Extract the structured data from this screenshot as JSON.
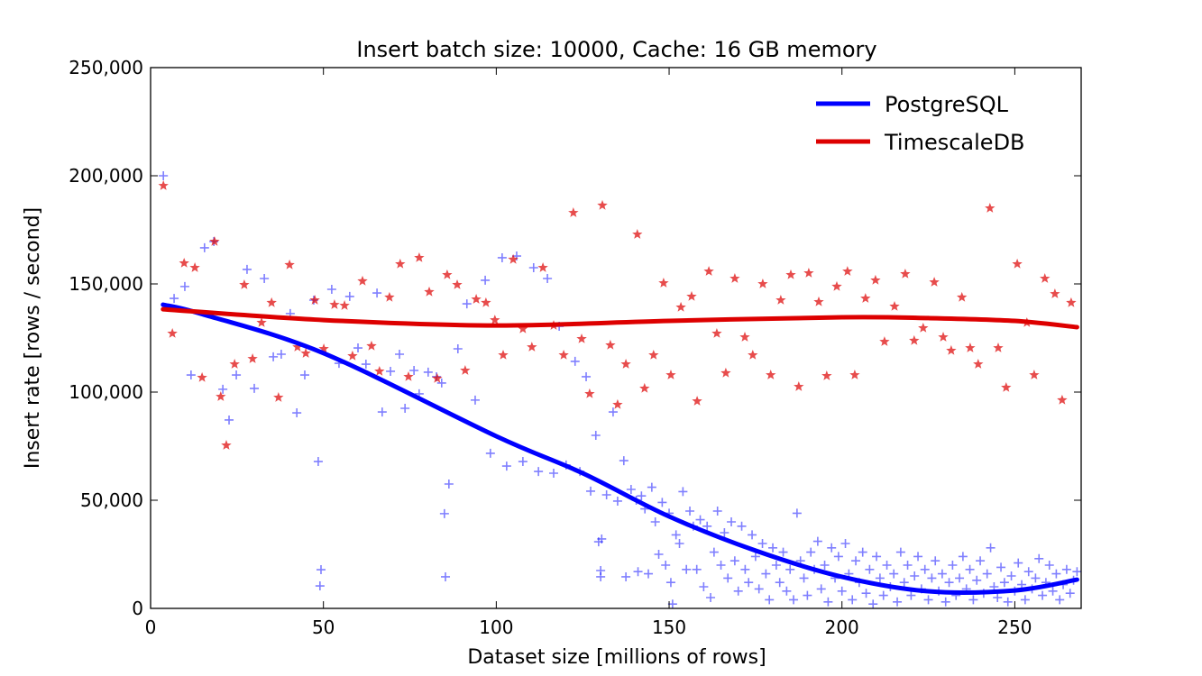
{
  "chart_data": {
    "type": "scatter",
    "title": "Insert batch size: 10000,  Cache: 16 GB memory",
    "xlabel": "Dataset size [millions of rows]",
    "ylabel": "Insert rate [rows / second]",
    "xlim": [
      0,
      269.2
    ],
    "ylim": [
      0,
      250000
    ],
    "xticks": [
      0,
      50,
      100,
      150,
      200,
      250
    ],
    "yticks": [
      0,
      50000,
      100000,
      150000,
      200000,
      250000
    ],
    "ytick_labels": [
      "0",
      "50,000",
      "100,000",
      "150,000",
      "200,000",
      "250,000"
    ],
    "grid": false,
    "legend_position": "top-right",
    "y_units_note": "point y values in thousands of rows/second",
    "series": [
      {
        "name": "PostgreSQL",
        "color": "#0000ff",
        "marker": "plus",
        "points": [
          [
            3.7,
            200.0
          ],
          [
            6.8,
            143.3
          ],
          [
            9.9,
            148.8
          ],
          [
            11.7,
            107.9
          ],
          [
            15.6,
            166.7
          ],
          [
            18.3,
            169.6
          ],
          [
            20.9,
            101.3
          ],
          [
            22.7,
            87.1
          ],
          [
            24.8,
            107.9
          ],
          [
            27.9,
            156.7
          ],
          [
            30.0,
            101.7
          ],
          [
            32.9,
            152.5
          ],
          [
            35.5,
            116.3
          ],
          [
            37.8,
            117.5
          ],
          [
            40.4,
            136.3
          ],
          [
            42.3,
            90.4
          ],
          [
            44.6,
            107.9
          ],
          [
            47.2,
            142.5
          ],
          [
            48.5,
            67.9
          ],
          [
            49.3,
            17.9
          ],
          [
            49.0,
            10.4
          ],
          [
            52.4,
            147.5
          ],
          [
            54.5,
            113.3
          ],
          [
            57.6,
            144.2
          ],
          [
            60.0,
            120.4
          ],
          [
            62.3,
            112.9
          ],
          [
            65.5,
            145.8
          ],
          [
            67.0,
            90.8
          ],
          [
            69.4,
            109.6
          ],
          [
            72.0,
            117.5
          ],
          [
            73.6,
            92.5
          ],
          [
            76.2,
            110.0
          ],
          [
            77.7,
            99.2
          ],
          [
            80.3,
            109.2
          ],
          [
            82.7,
            107.1
          ],
          [
            84.2,
            104.2
          ],
          [
            85.0,
            43.8
          ],
          [
            85.3,
            14.6
          ],
          [
            86.3,
            57.5
          ],
          [
            88.9,
            120.0
          ],
          [
            91.5,
            140.8
          ],
          [
            93.9,
            96.3
          ],
          [
            96.8,
            151.7
          ],
          [
            98.3,
            71.7
          ],
          [
            101.7,
            162.1
          ],
          [
            103.0,
            65.8
          ],
          [
            105.9,
            162.9
          ],
          [
            107.7,
            67.9
          ],
          [
            110.8,
            157.5
          ],
          [
            112.2,
            63.3
          ],
          [
            114.8,
            152.5
          ],
          [
            116.6,
            62.5
          ],
          [
            118.2,
            130.4
          ],
          [
            120.2,
            66.3
          ],
          [
            122.8,
            114.2
          ],
          [
            124.2,
            63.3
          ],
          [
            126.0,
            107.1
          ],
          [
            127.3,
            54.2
          ],
          [
            128.8,
            80.0
          ],
          [
            129.6,
            30.8
          ],
          [
            130.5,
            32.1
          ],
          [
            130.2,
            17.5
          ],
          [
            130.2,
            14.6
          ],
          [
            131.9,
            52.5
          ],
          [
            133.8,
            90.8
          ],
          [
            135.1,
            49.6
          ],
          [
            136.9,
            68.3
          ],
          [
            137.5,
            14.6
          ],
          [
            139.0,
            55.0
          ],
          [
            140.5,
            50
          ],
          [
            141,
            17
          ],
          [
            142,
            52
          ],
          [
            143,
            46
          ],
          [
            144,
            16
          ],
          [
            145,
            56
          ],
          [
            146,
            40
          ],
          [
            147,
            25
          ],
          [
            148,
            49
          ],
          [
            149,
            20
          ],
          [
            150,
            44
          ],
          [
            150.5,
            12
          ],
          [
            151,
            2
          ],
          [
            152,
            34
          ],
          [
            153,
            30
          ],
          [
            154,
            54
          ],
          [
            155,
            18
          ],
          [
            156,
            45
          ],
          [
            157,
            38
          ],
          [
            158,
            18
          ],
          [
            159,
            41
          ],
          [
            160,
            10
          ],
          [
            161,
            38
          ],
          [
            162,
            5
          ],
          [
            163,
            26
          ],
          [
            164,
            45
          ],
          [
            165,
            20
          ],
          [
            166,
            35
          ],
          [
            167,
            14
          ],
          [
            168,
            40
          ],
          [
            169,
            22
          ],
          [
            170,
            8
          ],
          [
            171,
            38
          ],
          [
            172,
            18
          ],
          [
            173,
            12
          ],
          [
            174,
            34
          ],
          [
            175,
            24
          ],
          [
            176,
            9
          ],
          [
            177,
            30
          ],
          [
            178,
            16
          ],
          [
            179,
            4
          ],
          [
            180,
            28
          ],
          [
            181,
            20
          ],
          [
            182,
            12
          ],
          [
            183,
            26
          ],
          [
            184,
            8
          ],
          [
            185,
            18
          ],
          [
            186,
            4
          ],
          [
            187,
            44
          ],
          [
            188,
            22
          ],
          [
            189,
            14
          ],
          [
            190,
            6
          ],
          [
            191,
            26
          ],
          [
            192,
            18
          ],
          [
            193,
            31
          ],
          [
            194,
            9
          ],
          [
            195,
            20
          ],
          [
            196,
            3
          ],
          [
            197,
            28
          ],
          [
            198,
            14
          ],
          [
            199,
            24
          ],
          [
            200,
            8
          ],
          [
            201,
            30
          ],
          [
            202,
            16
          ],
          [
            203,
            4
          ],
          [
            204,
            22
          ],
          [
            205,
            12
          ],
          [
            206,
            26
          ],
          [
            207,
            7
          ],
          [
            208,
            18
          ],
          [
            209,
            2
          ],
          [
            210,
            24
          ],
          [
            211,
            14
          ],
          [
            212,
            6
          ],
          [
            213,
            20
          ],
          [
            214,
            10
          ],
          [
            215,
            16
          ],
          [
            216,
            3
          ],
          [
            217,
            26
          ],
          [
            218,
            12
          ],
          [
            219,
            20
          ],
          [
            220,
            6
          ],
          [
            221,
            15
          ],
          [
            222,
            24
          ],
          [
            223,
            9
          ],
          [
            224,
            18
          ],
          [
            225,
            4
          ],
          [
            226,
            14
          ],
          [
            227,
            22
          ],
          [
            228,
            8
          ],
          [
            229,
            16
          ],
          [
            230,
            3
          ],
          [
            231,
            12
          ],
          [
            232,
            20
          ],
          [
            233,
            6
          ],
          [
            234,
            14
          ],
          [
            235,
            24
          ],
          [
            236,
            9
          ],
          [
            237,
            18
          ],
          [
            238,
            4
          ],
          [
            239,
            13
          ],
          [
            240,
            22
          ],
          [
            241,
            7
          ],
          [
            242,
            16
          ],
          [
            243,
            28
          ],
          [
            244,
            10
          ],
          [
            245,
            5
          ],
          [
            246,
            19
          ],
          [
            247,
            12
          ],
          [
            248,
            3
          ],
          [
            249,
            15
          ],
          [
            250,
            8
          ],
          [
            251,
            21
          ],
          [
            252,
            11
          ],
          [
            253,
            4
          ],
          [
            254,
            17
          ],
          [
            255,
            9
          ],
          [
            256,
            14
          ],
          [
            257,
            23
          ],
          [
            258,
            6
          ],
          [
            259,
            12
          ],
          [
            260,
            20
          ],
          [
            261,
            8
          ],
          [
            262,
            16
          ],
          [
            263,
            4
          ],
          [
            264,
            11
          ],
          [
            265,
            18
          ],
          [
            266,
            7
          ],
          [
            267,
            13
          ],
          [
            268,
            17
          ]
        ],
        "fit": [
          [
            3.6,
            140.4
          ],
          [
            15,
            136
          ],
          [
            50,
            118
          ],
          [
            100,
            79.6
          ],
          [
            125,
            62.5
          ],
          [
            150,
            42.5
          ],
          [
            175,
            26.7
          ],
          [
            200,
            14.6
          ],
          [
            225,
            7.9
          ],
          [
            250,
            8.3
          ],
          [
            268,
            13.3
          ]
        ]
      },
      {
        "name": "TimescaleDB",
        "color": "#dd0000",
        "marker": "star",
        "points": [
          [
            3.7,
            195.4
          ],
          [
            6.3,
            127.1
          ],
          [
            9.7,
            159.6
          ],
          [
            12.8,
            157.5
          ],
          [
            14.9,
            106.7
          ],
          [
            18.5,
            169.6
          ],
          [
            20.3,
            97.9
          ],
          [
            21.9,
            75.4
          ],
          [
            24.3,
            112.9
          ],
          [
            27.1,
            149.6
          ],
          [
            29.5,
            115.4
          ],
          [
            32.1,
            132.1
          ],
          [
            35.0,
            141.3
          ],
          [
            37.0,
            97.5
          ],
          [
            40.2,
            158.8
          ],
          [
            42.5,
            120.8
          ],
          [
            44.9,
            117.9
          ],
          [
            47.5,
            142.5
          ],
          [
            50.1,
            120.0
          ],
          [
            53.2,
            140.4
          ],
          [
            56.1,
            140.0
          ],
          [
            58.4,
            116.7
          ],
          [
            61.3,
            151.3
          ],
          [
            63.9,
            121.3
          ],
          [
            66.2,
            109.6
          ],
          [
            69.1,
            143.8
          ],
          [
            72.2,
            159.2
          ],
          [
            74.6,
            107.1
          ],
          [
            77.7,
            162.1
          ],
          [
            80.6,
            146.3
          ],
          [
            82.9,
            106.3
          ],
          [
            85.8,
            154.2
          ],
          [
            88.7,
            149.6
          ],
          [
            91.0,
            110.0
          ],
          [
            94.2,
            142.9
          ],
          [
            97.0,
            141.3
          ],
          [
            99.6,
            133.3
          ],
          [
            102.0,
            117.1
          ],
          [
            104.9,
            161.3
          ],
          [
            107.7,
            129.2
          ],
          [
            110.3,
            120.8
          ],
          [
            113.5,
            157.5
          ],
          [
            116.6,
            130.8
          ],
          [
            119.5,
            117.1
          ],
          [
            122.3,
            182.9
          ],
          [
            124.7,
            124.6
          ],
          [
            127.0,
            99.2
          ],
          [
            130.7,
            186.3
          ],
          [
            133.0,
            121.7
          ],
          [
            135.1,
            94.2
          ],
          [
            137.5,
            112.9
          ],
          [
            140.8,
            172.9
          ],
          [
            142.9,
            101.7
          ],
          [
            145.5,
            117.1
          ],
          [
            148.4,
            150.4
          ],
          [
            150.5,
            107.9
          ],
          [
            153.4,
            139.2
          ],
          [
            156.5,
            144.2
          ],
          [
            158.1,
            95.8
          ],
          [
            161.5,
            155.8
          ],
          [
            163.8,
            127.1
          ],
          [
            166.4,
            108.8
          ],
          [
            169.0,
            152.5
          ],
          [
            171.9,
            125.4
          ],
          [
            174.2,
            117.1
          ],
          [
            177.1,
            150.0
          ],
          [
            179.4,
            107.9
          ],
          [
            182.3,
            142.5
          ],
          [
            185.2,
            154.2
          ],
          [
            187.5,
            102.5
          ],
          [
            190.4,
            155.0
          ],
          [
            193.3,
            141.7
          ],
          [
            195.6,
            107.5
          ],
          [
            198.5,
            148.8
          ],
          [
            201.6,
            155.8
          ],
          [
            203.7,
            107.9
          ],
          [
            206.8,
            143.3
          ],
          [
            209.7,
            151.7
          ],
          [
            212.3,
            123.3
          ],
          [
            215.2,
            139.6
          ],
          [
            218.3,
            154.6
          ],
          [
            220.9,
            123.8
          ],
          [
            223.5,
            129.6
          ],
          [
            226.7,
            150.8
          ],
          [
            229.3,
            125.4
          ],
          [
            231.6,
            119.2
          ],
          [
            234.7,
            143.8
          ],
          [
            237.1,
            120.4
          ],
          [
            239.4,
            112.9
          ],
          [
            242.8,
            185.0
          ],
          [
            245.2,
            120.4
          ],
          [
            247.5,
            102.1
          ],
          [
            250.7,
            159.2
          ],
          [
            253.5,
            132.1
          ],
          [
            255.6,
            107.9
          ],
          [
            258.7,
            152.5
          ],
          [
            261.6,
            145.4
          ],
          [
            263.7,
            96.3
          ],
          [
            266.3,
            141.3
          ]
        ],
        "fit": [
          [
            3.6,
            138.3
          ],
          [
            50,
            133.3
          ],
          [
            100,
            130.8
          ],
          [
            150,
            132.9
          ],
          [
            200,
            134.6
          ],
          [
            225,
            134.2
          ],
          [
            250,
            132.9
          ],
          [
            268,
            130.0
          ]
        ]
      }
    ]
  }
}
